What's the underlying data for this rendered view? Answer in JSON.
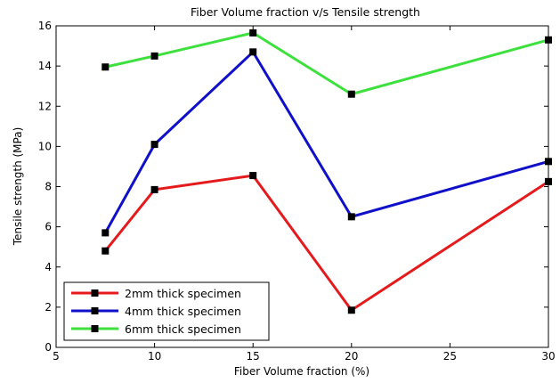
{
  "chart_data": {
    "type": "line",
    "title": "Fiber Volume fraction v/s Tensile strength",
    "xlabel": "Fiber Volume fraction (%)",
    "ylabel": "Tensile strength (MPa)",
    "xlim": [
      5,
      30
    ],
    "ylim": [
      0,
      16
    ],
    "xticks": [
      5,
      10,
      15,
      20,
      25,
      30
    ],
    "yticks": [
      0,
      2,
      4,
      6,
      8,
      10,
      12,
      14,
      16
    ],
    "x": [
      7.5,
      10,
      15,
      20,
      30
    ],
    "grid": false,
    "legend_position": "bottom-left",
    "series": [
      {
        "name": "2mm thick specimen",
        "color": "#e41a1c",
        "values": [
          4.8,
          7.85,
          8.55,
          1.85,
          8.25
        ]
      },
      {
        "name": "4mm thick specimen",
        "color": "#1010c8",
        "values": [
          5.7,
          10.1,
          14.7,
          6.5,
          9.25
        ]
      },
      {
        "name": "6mm thick specimen",
        "color": "#3ee03e",
        "values": [
          13.95,
          14.5,
          15.65,
          12.6,
          15.3
        ]
      }
    ],
    "marker_color": "#000000"
  }
}
